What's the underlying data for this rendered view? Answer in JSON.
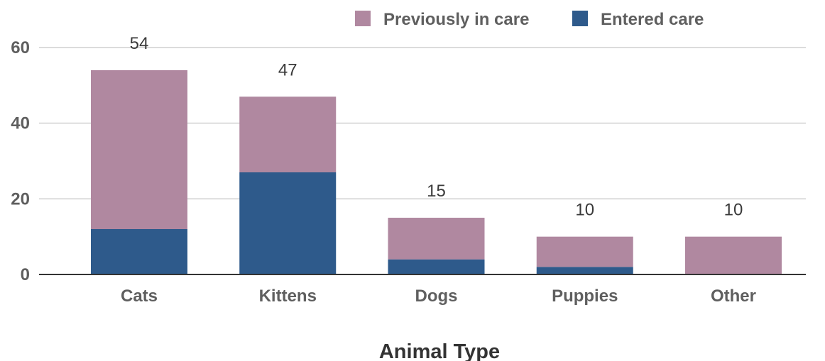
{
  "chart_data": {
    "type": "bar",
    "stacked": true,
    "title": "",
    "xlabel": "Animal Type",
    "ylabel": "",
    "ylim": [
      0,
      60
    ],
    "yticks": [
      0,
      20,
      40,
      60
    ],
    "grid": true,
    "legend_position": "top-right",
    "categories": [
      "Cats",
      "Kittens",
      "Dogs",
      "Puppies",
      "Other"
    ],
    "series": [
      {
        "name": "Entered care",
        "color": "#2e5a8b",
        "values": [
          12,
          27,
          4,
          2,
          0
        ]
      },
      {
        "name": "Previously in care",
        "color": "#b088a0",
        "values": [
          42,
          20,
          11,
          8,
          10
        ]
      }
    ],
    "totals": [
      54,
      47,
      15,
      10,
      10
    ],
    "legend_order": [
      "Previously in care",
      "Entered care"
    ]
  }
}
